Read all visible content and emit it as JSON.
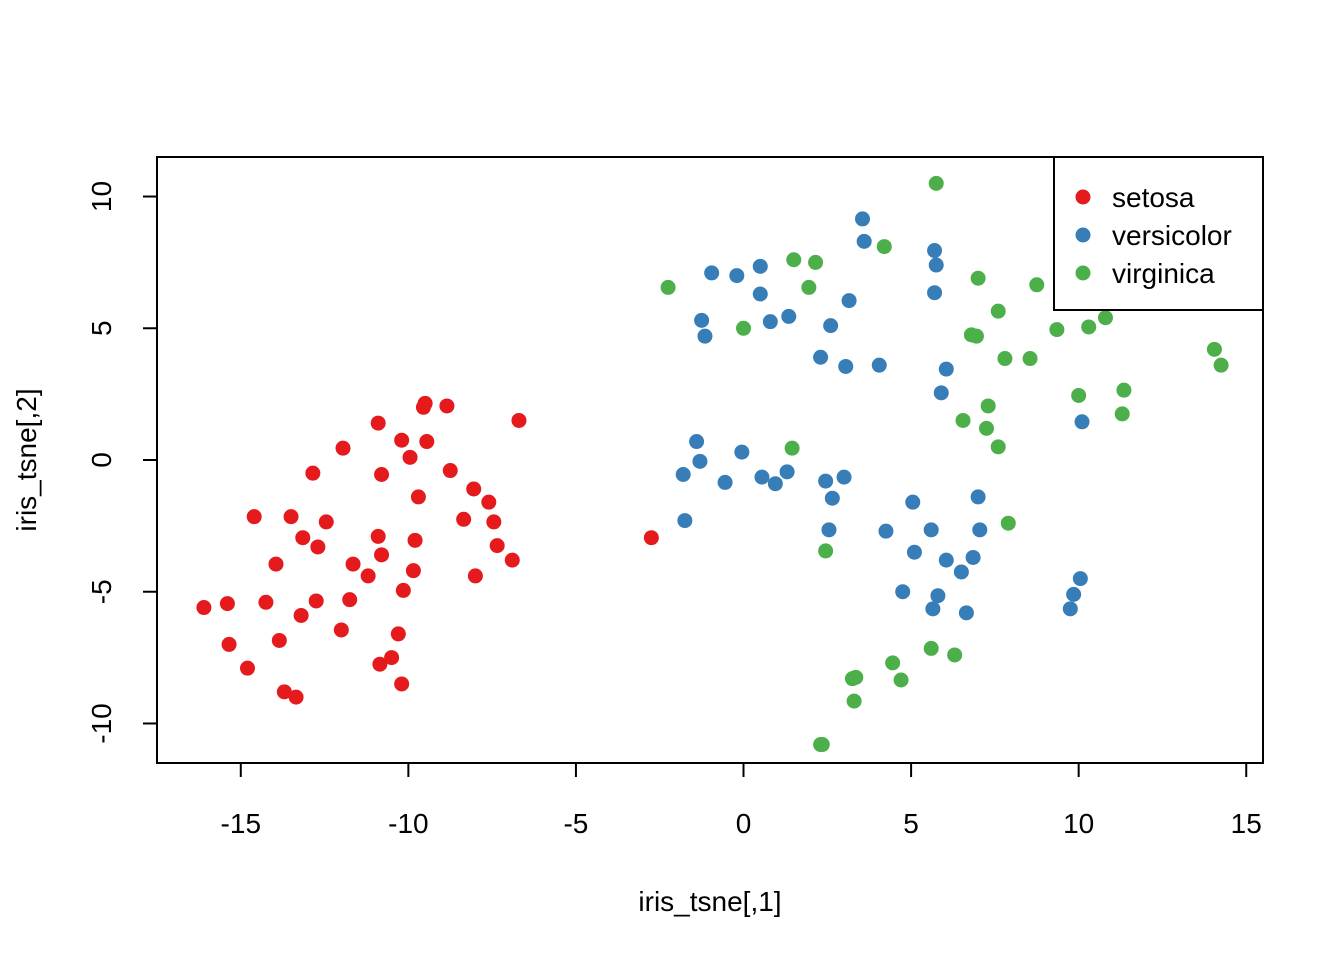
{
  "chart_data": {
    "type": "scatter",
    "title": "",
    "xlabel": "iris_tsne[,1]",
    "ylabel": "iris_tsne[,2]",
    "xlim": [
      -17.5,
      15.5
    ],
    "ylim": [
      -11.5,
      11.5
    ],
    "xticks": [
      -15,
      -10,
      -5,
      0,
      5,
      10,
      15
    ],
    "yticks": [
      -10,
      -5,
      0,
      5,
      10
    ],
    "xtick_labels": [
      "-15",
      "-10",
      "-5",
      "0",
      "5",
      "10",
      "15"
    ],
    "ytick_labels": [
      "-10",
      "-5",
      "0",
      "5",
      "10"
    ],
    "grid": false,
    "legend_position": "top-right",
    "series": [
      {
        "name": "setosa",
        "color": "#e41a1c",
        "points": [
          [
            -16.1,
            -5.6
          ],
          [
            -15.4,
            -5.45
          ],
          [
            -15.35,
            -7.0
          ],
          [
            -14.8,
            -7.9
          ],
          [
            -14.6,
            -2.15
          ],
          [
            -14.25,
            -5.4
          ],
          [
            -13.95,
            -3.95
          ],
          [
            -13.85,
            -6.85
          ],
          [
            -13.7,
            -8.8
          ],
          [
            -13.5,
            -2.15
          ],
          [
            -13.35,
            -9.0
          ],
          [
            -13.2,
            -5.9
          ],
          [
            -13.15,
            -2.95
          ],
          [
            -12.85,
            -0.5
          ],
          [
            -12.75,
            -5.35
          ],
          [
            -12.7,
            -3.3
          ],
          [
            -12.45,
            -2.35
          ],
          [
            -12.0,
            -6.45
          ],
          [
            -11.95,
            0.45
          ],
          [
            -11.75,
            -5.3
          ],
          [
            -11.65,
            -3.95
          ],
          [
            -11.2,
            -4.4
          ],
          [
            -10.9,
            1.4
          ],
          [
            -10.9,
            -2.9
          ],
          [
            -10.85,
            -7.75
          ],
          [
            -10.8,
            -3.6
          ],
          [
            -10.8,
            -0.55
          ],
          [
            -10.5,
            -7.5
          ],
          [
            -10.3,
            -6.6
          ],
          [
            -10.2,
            0.75
          ],
          [
            -10.2,
            -8.5
          ],
          [
            -10.15,
            -4.95
          ],
          [
            -9.95,
            0.1
          ],
          [
            -9.85,
            -4.2
          ],
          [
            -9.8,
            -3.05
          ],
          [
            -9.7,
            -1.4
          ],
          [
            -9.55,
            2.0
          ],
          [
            -9.5,
            2.15
          ],
          [
            -9.45,
            0.7
          ],
          [
            -8.85,
            2.05
          ],
          [
            -8.75,
            -0.4
          ],
          [
            -8.35,
            -2.25
          ],
          [
            -8.05,
            -1.1
          ],
          [
            -8.0,
            -4.4
          ],
          [
            -7.6,
            -1.6
          ],
          [
            -7.45,
            -2.35
          ],
          [
            -7.35,
            -3.25
          ],
          [
            -6.9,
            -3.8
          ],
          [
            -6.7,
            1.5
          ],
          [
            -2.75,
            -2.95
          ]
        ]
      },
      {
        "name": "versicolor",
        "color": "#377eb8",
        "points": [
          [
            3.55,
            9.15
          ],
          [
            5.7,
            7.95
          ],
          [
            3.6,
            8.3
          ],
          [
            -0.95,
            7.1
          ],
          [
            0.5,
            7.35
          ],
          [
            5.75,
            7.4
          ],
          [
            -0.2,
            7.0
          ],
          [
            0.5,
            6.3
          ],
          [
            5.7,
            6.35
          ],
          [
            3.15,
            6.05
          ],
          [
            1.35,
            5.45
          ],
          [
            0.8,
            5.25
          ],
          [
            2.6,
            5.1
          ],
          [
            -1.25,
            5.3
          ],
          [
            -1.15,
            4.7
          ],
          [
            2.3,
            3.9
          ],
          [
            3.05,
            3.55
          ],
          [
            4.05,
            3.6
          ],
          [
            6.05,
            3.45
          ],
          [
            5.9,
            2.55
          ],
          [
            10.1,
            1.45
          ],
          [
            -1.4,
            0.7
          ],
          [
            -0.05,
            0.3
          ],
          [
            -1.3,
            -0.05
          ],
          [
            -1.8,
            -0.55
          ],
          [
            -0.55,
            -0.85
          ],
          [
            0.55,
            -0.65
          ],
          [
            0.95,
            -0.9
          ],
          [
            1.3,
            -0.45
          ],
          [
            2.45,
            -0.8
          ],
          [
            3.0,
            -0.65
          ],
          [
            2.65,
            -1.45
          ],
          [
            -1.75,
            -2.3
          ],
          [
            2.55,
            -2.65
          ],
          [
            4.25,
            -2.7
          ],
          [
            5.05,
            -1.6
          ],
          [
            5.6,
            -2.65
          ],
          [
            7.0,
            -1.4
          ],
          [
            7.05,
            -2.65
          ],
          [
            5.1,
            -3.5
          ],
          [
            6.05,
            -3.8
          ],
          [
            6.85,
            -3.7
          ],
          [
            6.5,
            -4.25
          ],
          [
            4.75,
            -5.0
          ],
          [
            5.8,
            -5.15
          ],
          [
            5.65,
            -5.65
          ],
          [
            6.65,
            -5.8
          ],
          [
            10.05,
            -4.5
          ],
          [
            9.85,
            -5.1
          ],
          [
            9.75,
            -5.65
          ]
        ]
      },
      {
        "name": "virginica",
        "color": "#4daf4a",
        "points": [
          [
            5.75,
            10.5
          ],
          [
            4.2,
            8.1
          ],
          [
            1.5,
            7.6
          ],
          [
            2.15,
            7.5
          ],
          [
            7.0,
            6.9
          ],
          [
            8.75,
            6.65
          ],
          [
            -2.25,
            6.55
          ],
          [
            1.95,
            6.55
          ],
          [
            7.6,
            5.65
          ],
          [
            10.8,
            5.4
          ],
          [
            10.3,
            5.05
          ],
          [
            9.35,
            4.95
          ],
          [
            0.0,
            5.0
          ],
          [
            6.8,
            4.75
          ],
          [
            6.95,
            4.7
          ],
          [
            14.05,
            4.2
          ],
          [
            14.25,
            3.6
          ],
          [
            7.8,
            3.85
          ],
          [
            8.55,
            3.85
          ],
          [
            11.35,
            2.65
          ],
          [
            10.0,
            2.45
          ],
          [
            7.3,
            2.05
          ],
          [
            11.3,
            1.75
          ],
          [
            6.55,
            1.5
          ],
          [
            7.25,
            1.2
          ],
          [
            7.6,
            0.5
          ],
          [
            1.45,
            0.45
          ],
          [
            7.9,
            -2.4
          ],
          [
            2.45,
            -3.45
          ],
          [
            5.6,
            -7.15
          ],
          [
            6.3,
            -7.4
          ],
          [
            4.45,
            -7.7
          ],
          [
            3.35,
            -8.25
          ],
          [
            3.25,
            -8.3
          ],
          [
            4.7,
            -8.35
          ],
          [
            3.3,
            -9.15
          ],
          [
            2.35,
            -10.8
          ],
          [
            2.3,
            -10.8
          ]
        ]
      }
    ]
  }
}
